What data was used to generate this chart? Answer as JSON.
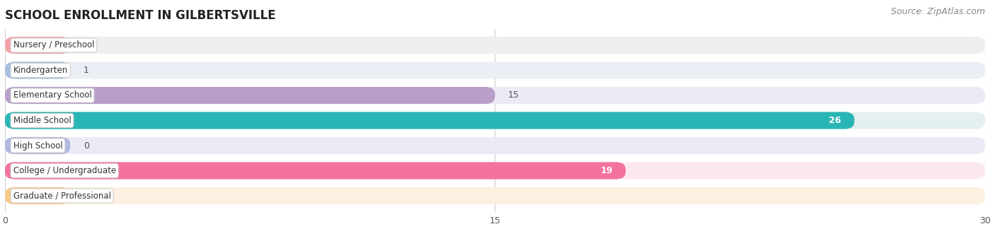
{
  "title": "SCHOOL ENROLLMENT IN GILBERTSVILLE",
  "source": "Source: ZipAtlas.com",
  "categories": [
    "Nursery / Preschool",
    "Kindergarten",
    "Elementary School",
    "Middle School",
    "High School",
    "College / Undergraduate",
    "Graduate / Professional"
  ],
  "values": [
    0,
    1,
    15,
    26,
    0,
    19,
    2
  ],
  "bar_colors": [
    "#f4a0a8",
    "#a8bfe0",
    "#b89ec8",
    "#2ab5b5",
    "#b0b8e0",
    "#f472a0",
    "#f8c888"
  ],
  "bar_bg_colors": [
    "#f0eeee",
    "#eaeef5",
    "#eeeaf5",
    "#e5f0f0",
    "#eaeaf5",
    "#fce8f0",
    "#fdf0e0"
  ],
  "xlim": [
    0,
    30
  ],
  "xticks": [
    0,
    15,
    30
  ],
  "bg_color": "#ffffff",
  "title_fontsize": 12,
  "source_fontsize": 9,
  "min_bar_display": 2.0
}
